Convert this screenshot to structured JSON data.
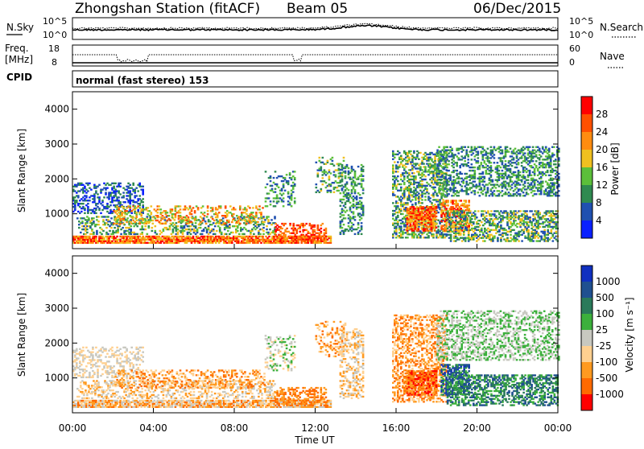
{
  "header": {
    "station": "Zhongshan Station (fitACF)",
    "beam": "Beam 05",
    "date": "06/Dec/2015"
  },
  "noise_panel": {
    "left_label": "N.Sky",
    "left_ticks": [
      "10^5",
      "10^0"
    ],
    "right_ticks": [
      "10^5",
      "10^0"
    ],
    "right_label": "N.Search"
  },
  "freq_panel": {
    "left_label_1": "Freq.",
    "left_label_2": "[MHz]",
    "left_ticks": [
      "18",
      "8"
    ],
    "right_ticks": [
      "60",
      "0"
    ],
    "right_label": "Nave"
  },
  "cpid": {
    "label": "CPID",
    "mode": "normal (fast stereo) 153"
  },
  "colors": {
    "power_scale": [
      "#0a20ff",
      "#2050b0",
      "#2f8a50",
      "#5cbf3a",
      "#f0c020",
      "#ff8c10",
      "#ff5000",
      "#ff0000"
    ],
    "velocity_scale": [
      "#ff0000",
      "#ff6a00",
      "#ff9a20",
      "#ffd090",
      "#c8c8c0",
      "#3cb03c",
      "#2a7a5a",
      "#205090",
      "#1030c0"
    ]
  },
  "chart_data": [
    {
      "type": "heatmap",
      "name": "power",
      "ylabel": "Slant Range [km]",
      "yticks": [
        "1000",
        "2000",
        "3000",
        "4000"
      ],
      "ylim": [
        0,
        4500
      ],
      "colorbar_label": "Power [dB]",
      "colorbar_ticks": [
        "4",
        "8",
        "12",
        "16",
        "20",
        "24",
        "28"
      ],
      "colorbar_range": [
        0,
        30
      ]
    },
    {
      "type": "heatmap",
      "name": "velocity",
      "ylabel": "Slant Range [km]",
      "yticks": [
        "1000",
        "2000",
        "3000",
        "4000"
      ],
      "ylim": [
        0,
        4500
      ],
      "colorbar_label": "Velocity [m s⁻¹]",
      "colorbar_ticks": [
        "1000",
        "500",
        "100",
        "25",
        "-25",
        "-100",
        "-500",
        "-1000"
      ]
    }
  ],
  "x_axis": {
    "ticks": [
      "00:00",
      "04:00",
      "08:00",
      "12:00",
      "16:00",
      "20:00",
      "00:00"
    ],
    "label": "Time UT",
    "range_hours": [
      0,
      24
    ]
  }
}
